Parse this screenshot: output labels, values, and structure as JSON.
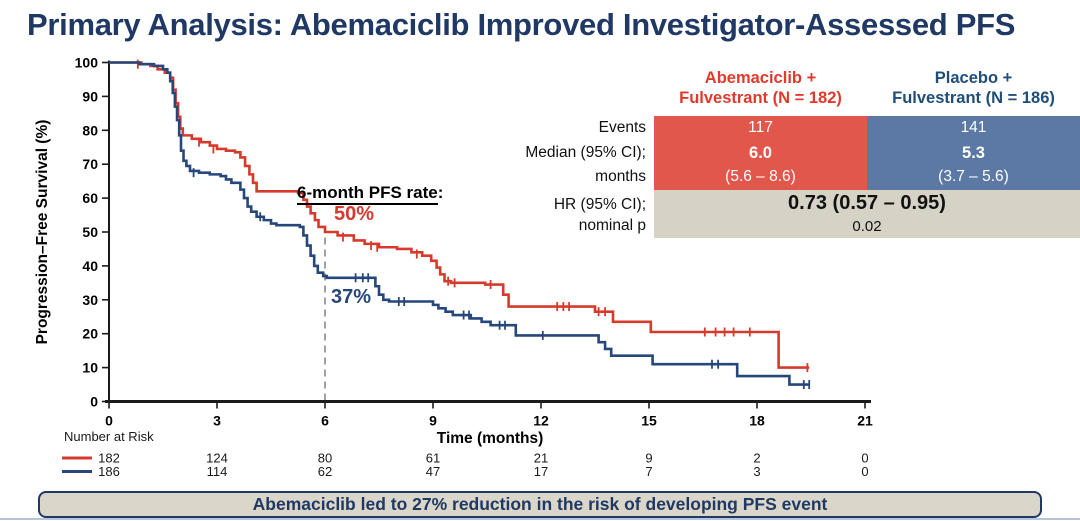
{
  "slide": {
    "title": "Primary Analysis: Abemaciclib Improved Investigator-Assessed PFS",
    "accent_navy": "#1f3864",
    "banner": "Abemaciclib led to 27% reduction in the risk of developing PFS event"
  },
  "summary_table": {
    "row_labels": [
      "Events",
      "Median (95% CI);",
      "months",
      "HR (95% CI);",
      "nominal p"
    ],
    "columns": [
      {
        "header": [
          "Abemaciclib +",
          "Fulvestrant (N = 182)"
        ],
        "header_color": "#e03a2d",
        "bg": "#e2574c",
        "events": "117",
        "median": "6.0",
        "ci": "(5.6 – 8.6)"
      },
      {
        "header": [
          "Placebo +",
          "Fulvestrant (N = 186)"
        ],
        "header_color": "#1f4e79",
        "bg": "#5b79a4",
        "events": "141",
        "median": "5.3",
        "ci": "(3.7 – 5.6)"
      }
    ],
    "hr_row": {
      "bg": "#d6d3c6",
      "hr": "0.73 (0.57 – 0.95)",
      "p": "0.02"
    }
  },
  "chart_data": {
    "type": "line",
    "subtype": "kaplan-meier-step",
    "xlabel": "Time (months)",
    "ylabel": "Progression–Free Survival (%)",
    "xlim": [
      0,
      21
    ],
    "ylim": [
      0,
      100
    ],
    "x_ticks": [
      0,
      3,
      6,
      9,
      12,
      15,
      18,
      21
    ],
    "y_ticks": [
      0,
      10,
      20,
      30,
      40,
      50,
      60,
      70,
      80,
      90,
      100
    ],
    "grid": false,
    "annotations": {
      "six_month_label": "6-month PFS rate",
      "colon": ":",
      "abema_rate": "50%",
      "placebo_rate": "37%"
    },
    "six_month_line": {
      "x": 6,
      "top_pct": 50
    },
    "series": [
      {
        "name": "Abemaciclib + Fulvestrant",
        "color": "#d63a2c",
        "points": [
          [
            0,
            100
          ],
          [
            0.9,
            99.5
          ],
          [
            1.15,
            99
          ],
          [
            1.35,
            98
          ],
          [
            1.55,
            97
          ],
          [
            1.7,
            95.5
          ],
          [
            1.78,
            92
          ],
          [
            1.85,
            88
          ],
          [
            1.92,
            84
          ],
          [
            1.98,
            80.5
          ],
          [
            2.05,
            78.5
          ],
          [
            2.3,
            77.5
          ],
          [
            2.55,
            76.5
          ],
          [
            2.8,
            75.5
          ],
          [
            3.0,
            74.5
          ],
          [
            3.25,
            74
          ],
          [
            3.5,
            73.5
          ],
          [
            3.65,
            72
          ],
          [
            3.78,
            69.5
          ],
          [
            3.9,
            67
          ],
          [
            4.0,
            64.5
          ],
          [
            4.1,
            62
          ],
          [
            5.25,
            61.5
          ],
          [
            5.4,
            59.5
          ],
          [
            5.5,
            57.5
          ],
          [
            5.6,
            55.5
          ],
          [
            5.72,
            53.5
          ],
          [
            5.82,
            51.5
          ],
          [
            6.0,
            50
          ],
          [
            6.35,
            49
          ],
          [
            6.8,
            47.5
          ],
          [
            7.1,
            46.5
          ],
          [
            7.5,
            45.5
          ],
          [
            8.0,
            45
          ],
          [
            8.4,
            44
          ],
          [
            8.7,
            43
          ],
          [
            8.95,
            41.5
          ],
          [
            9.1,
            39.5
          ],
          [
            9.2,
            37.5
          ],
          [
            9.32,
            35.5
          ],
          [
            9.5,
            35
          ],
          [
            10.45,
            34.5
          ],
          [
            10.95,
            31.5
          ],
          [
            11.1,
            28
          ],
          [
            13.5,
            26.5
          ],
          [
            14.0,
            23.5
          ],
          [
            15.05,
            20.5
          ],
          [
            18.6,
            10
          ],
          [
            19.45,
            10
          ]
        ],
        "censors": [
          [
            0.8,
            99.5
          ],
          [
            2.5,
            76.5
          ],
          [
            2.9,
            74.5
          ],
          [
            6.5,
            48.5
          ],
          [
            7.28,
            46
          ],
          [
            7.45,
            45.5
          ],
          [
            8.55,
            43.5
          ],
          [
            9.42,
            35.5
          ],
          [
            9.6,
            35
          ],
          [
            10.6,
            34.5
          ],
          [
            12.45,
            28
          ],
          [
            12.62,
            28
          ],
          [
            12.78,
            28
          ],
          [
            13.6,
            26.5
          ],
          [
            13.78,
            26.5
          ],
          [
            16.55,
            20.5
          ],
          [
            16.85,
            20.5
          ],
          [
            17.1,
            20.5
          ],
          [
            17.35,
            20.5
          ],
          [
            17.8,
            20.5
          ],
          [
            19.4,
            10
          ]
        ]
      },
      {
        "name": "Placebo + Fulvestrant",
        "color": "#26477b",
        "points": [
          [
            0,
            100
          ],
          [
            0.85,
            99.5
          ],
          [
            1.25,
            99
          ],
          [
            1.5,
            98
          ],
          [
            1.62,
            97
          ],
          [
            1.7,
            94.5
          ],
          [
            1.77,
            91
          ],
          [
            1.83,
            87
          ],
          [
            1.89,
            83
          ],
          [
            1.95,
            78.5
          ],
          [
            2.0,
            74
          ],
          [
            2.07,
            71
          ],
          [
            2.15,
            69.5
          ],
          [
            2.25,
            68
          ],
          [
            2.5,
            67.5
          ],
          [
            2.8,
            67
          ],
          [
            3.1,
            66.5
          ],
          [
            3.25,
            65.5
          ],
          [
            3.4,
            64.5
          ],
          [
            3.65,
            62.5
          ],
          [
            3.75,
            60
          ],
          [
            3.85,
            57.5
          ],
          [
            3.95,
            56
          ],
          [
            4.1,
            54.5
          ],
          [
            4.3,
            53.5
          ],
          [
            4.5,
            52.5
          ],
          [
            4.65,
            52
          ],
          [
            5.3,
            51.5
          ],
          [
            5.4,
            49
          ],
          [
            5.5,
            46
          ],
          [
            5.6,
            43
          ],
          [
            5.7,
            40
          ],
          [
            5.8,
            38
          ],
          [
            5.95,
            37
          ],
          [
            6.05,
            36.5
          ],
          [
            7.4,
            34
          ],
          [
            7.5,
            31.5
          ],
          [
            7.62,
            30
          ],
          [
            7.78,
            29.5
          ],
          [
            9.0,
            28.5
          ],
          [
            9.15,
            27.5
          ],
          [
            9.35,
            26.5
          ],
          [
            9.55,
            25.5
          ],
          [
            10.05,
            24.5
          ],
          [
            10.35,
            23.5
          ],
          [
            10.6,
            22.5
          ],
          [
            11.3,
            19.5
          ],
          [
            13.6,
            17.5
          ],
          [
            13.78,
            15.5
          ],
          [
            13.95,
            13.5
          ],
          [
            15.1,
            11
          ],
          [
            17.45,
            7.5
          ],
          [
            18.9,
            5
          ],
          [
            19.45,
            5
          ]
        ],
        "censors": [
          [
            2.35,
            67.5
          ],
          [
            4.2,
            54.5
          ],
          [
            6.85,
            36.5
          ],
          [
            7.05,
            36.5
          ],
          [
            7.2,
            36.5
          ],
          [
            8.05,
            29.5
          ],
          [
            8.2,
            29.5
          ],
          [
            9.85,
            25.5
          ],
          [
            10.0,
            25.5
          ],
          [
            10.85,
            22.5
          ],
          [
            11.0,
            22.5
          ],
          [
            12.05,
            19.5
          ],
          [
            16.75,
            11
          ],
          [
            16.92,
            11
          ],
          [
            19.3,
            5
          ],
          [
            19.45,
            5
          ]
        ]
      }
    ],
    "number_at_risk": {
      "label": "Number at Risk",
      "rows": [
        {
          "series": "Abemaciclib + Fulvestrant",
          "color": "#d63a2c",
          "values": [
            "182",
            "124",
            "80",
            "61",
            "21",
            "9",
            "2",
            "0"
          ]
        },
        {
          "series": "Placebo + Fulvestrant",
          "color": "#26477b",
          "values": [
            "186",
            "114",
            "62",
            "47",
            "17",
            "7",
            "3",
            "0"
          ]
        }
      ]
    }
  }
}
